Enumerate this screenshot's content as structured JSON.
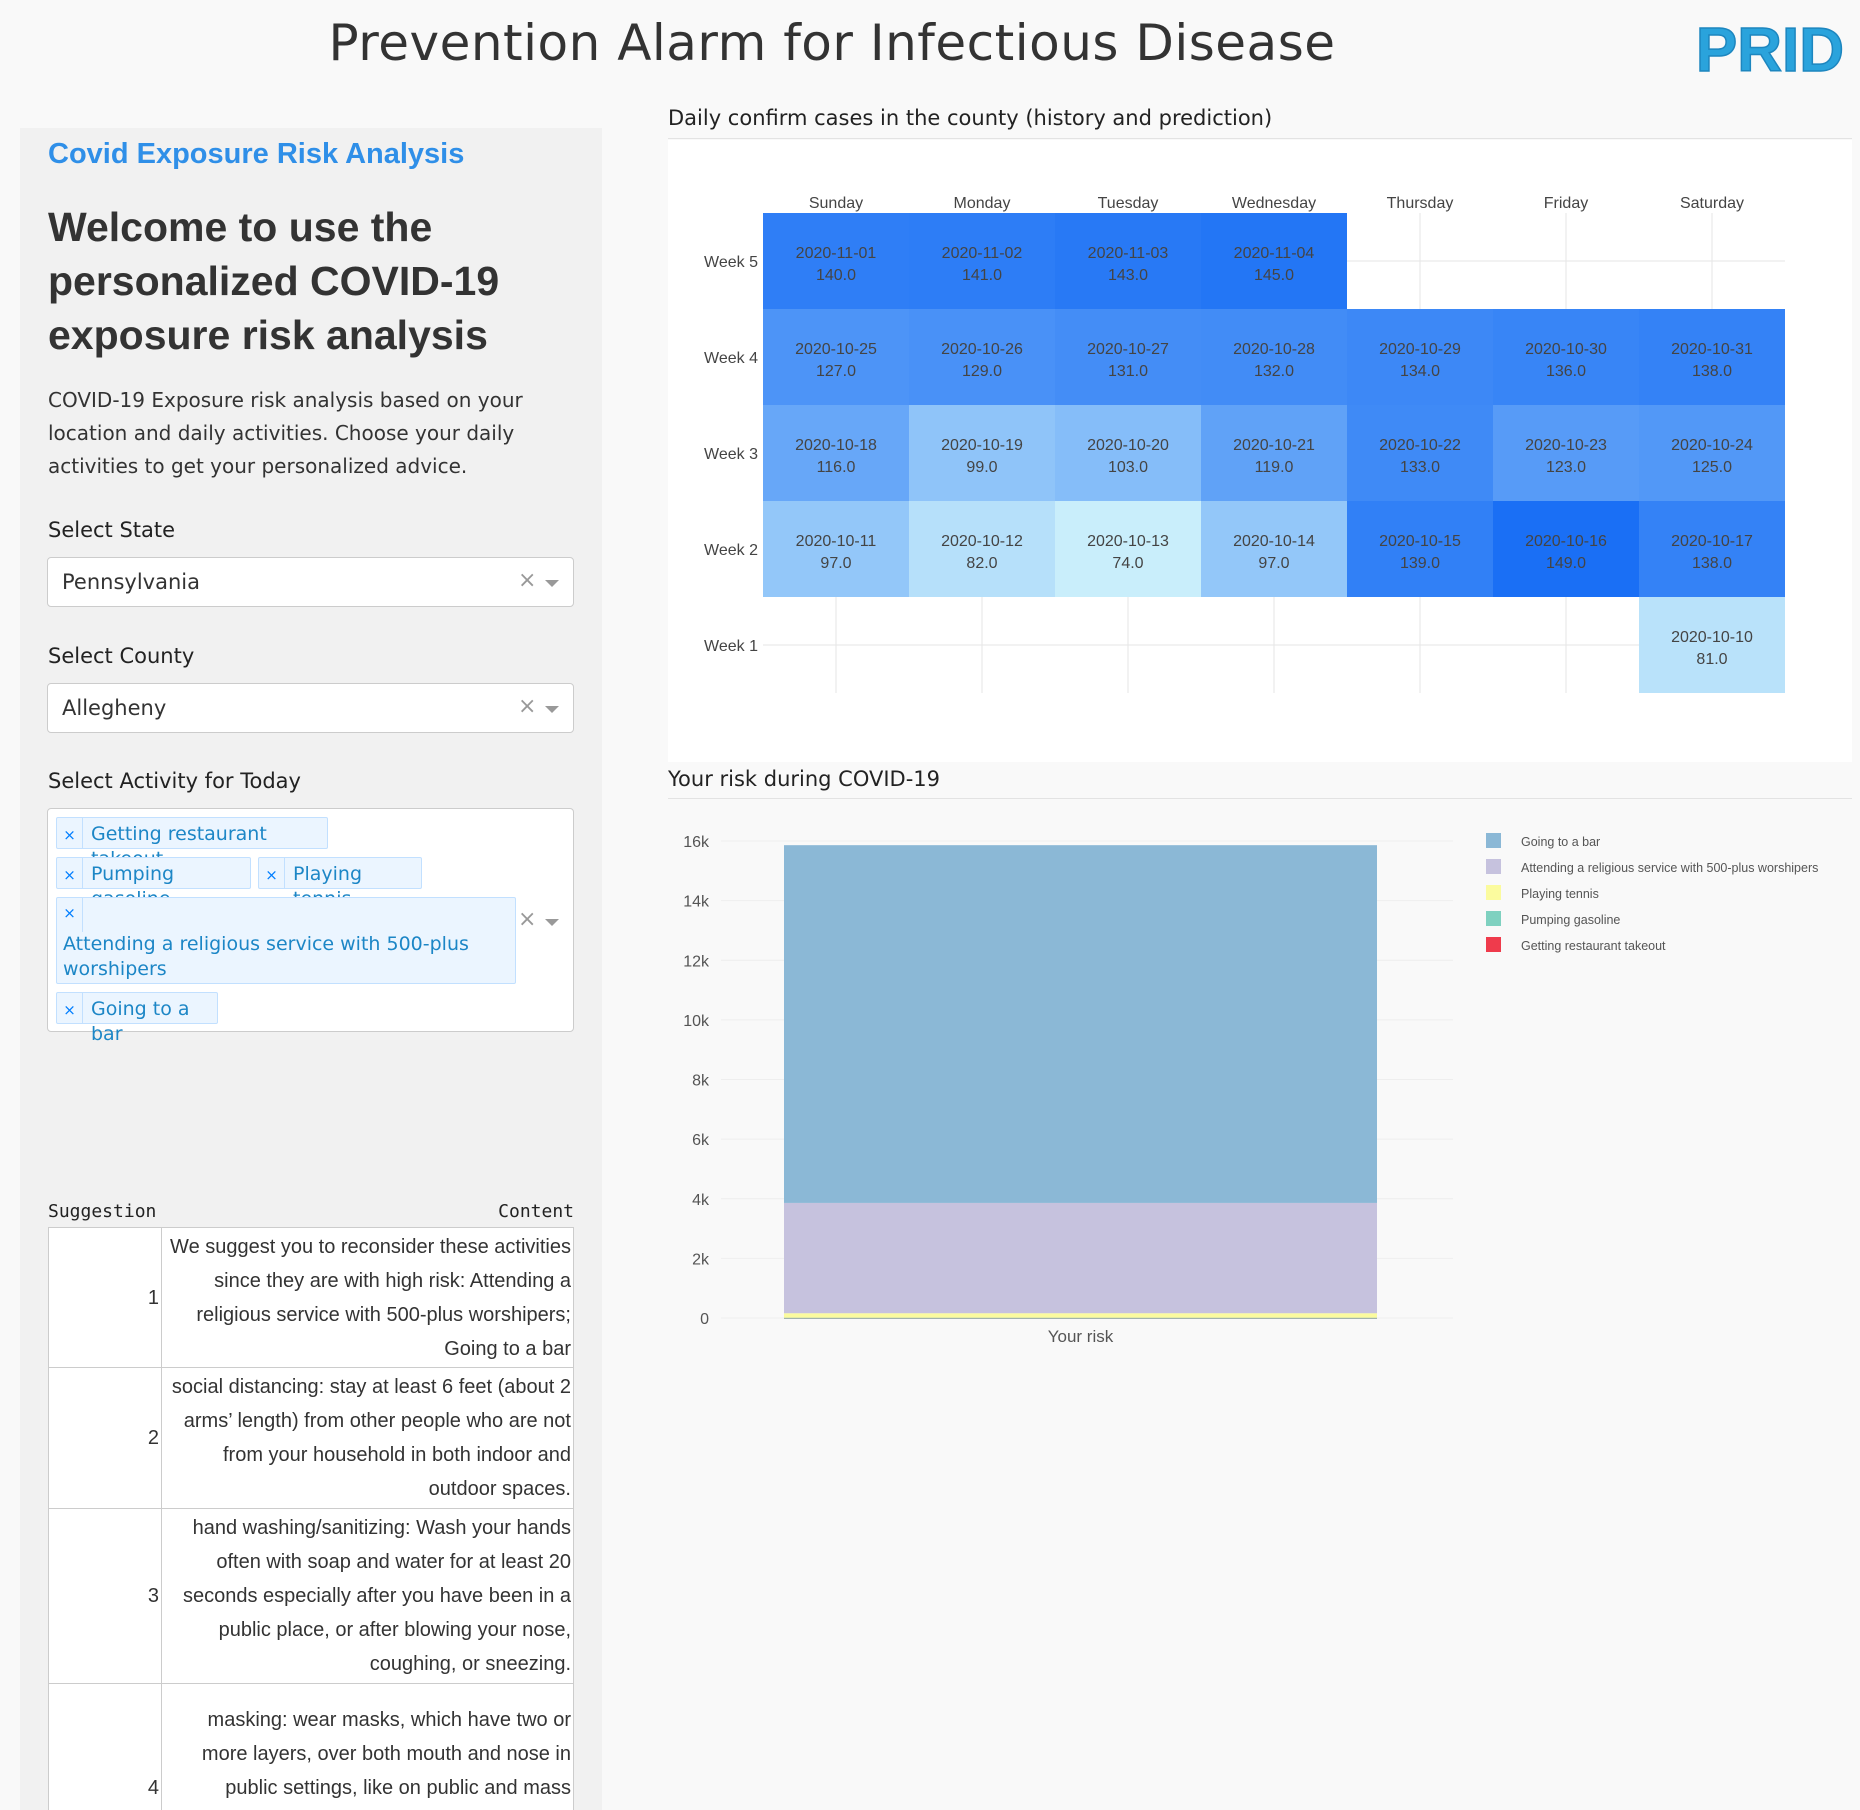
{
  "header": {
    "title": "Prevention Alarm for Infectious Disease",
    "logo_text": "PRID"
  },
  "sidebar": {
    "heading": "Covid Exposure Risk Analysis",
    "welcome": "Welcome to use the personalized COVID-19 exposure risk analysis",
    "intro": "COVID-19 Exposure risk analysis based on your location and daily activities. Choose your daily activities to get your personalized advice.",
    "state": {
      "label": "Select State",
      "value": "Pennsylvania"
    },
    "county": {
      "label": "Select County",
      "value": "Allegheny"
    },
    "activity": {
      "label": "Select Activity for Today",
      "selected": [
        "Getting restaurant takeout",
        "Pumping gasoline",
        "Playing tennis",
        "Attending a religious service with 500-plus worshipers",
        "Going to a bar"
      ]
    },
    "table": {
      "headers": [
        "Suggestion",
        "Content"
      ],
      "rows": [
        {
          "num": "1",
          "content": "We suggest you to reconsider these activities since they are with high risk: Attending a religious service with 500-plus worshipers; Going to a bar"
        },
        {
          "num": "2",
          "content": "social distancing: stay at least 6 feet (about 2 arms’ length) from other people who are not from your household in both indoor and outdoor spaces."
        },
        {
          "num": "3",
          "content": "hand washing/sanitizing: Wash your hands often with soap and water for at least 20 seconds especially after you have been in a public place, or after blowing your nose, coughing, or sneezing."
        },
        {
          "num": "4",
          "content": "masking: wear masks, which have two or more layers, over both mouth and nose in public settings, like on public and mass transportation, at events and gatherings, and anywhere they will be around other people."
        }
      ]
    }
  },
  "charts": {
    "calendar_title": "Daily confirm cases in the county (history and prediction)",
    "risk_title": "Your risk during COVID-19"
  },
  "chart_data": [
    {
      "type": "heatmap",
      "days": [
        "Sunday",
        "Monday",
        "Tuesday",
        "Wednesday",
        "Thursday",
        "Friday",
        "Saturday"
      ],
      "weeks": [
        "Week 5",
        "Week 4",
        "Week 3",
        "Week 2",
        "Week 1"
      ],
      "cells": [
        {
          "week": "Week 5",
          "day": "Sunday",
          "date": "2020-11-01",
          "value": "140.0"
        },
        {
          "week": "Week 5",
          "day": "Monday",
          "date": "2020-11-02",
          "value": "141.0"
        },
        {
          "week": "Week 5",
          "day": "Tuesday",
          "date": "2020-11-03",
          "value": "143.0"
        },
        {
          "week": "Week 5",
          "day": "Wednesday",
          "date": "2020-11-04",
          "value": "145.0"
        },
        {
          "week": "Week 4",
          "day": "Sunday",
          "date": "2020-10-25",
          "value": "127.0"
        },
        {
          "week": "Week 4",
          "day": "Monday",
          "date": "2020-10-26",
          "value": "129.0"
        },
        {
          "week": "Week 4",
          "day": "Tuesday",
          "date": "2020-10-27",
          "value": "131.0"
        },
        {
          "week": "Week 4",
          "day": "Wednesday",
          "date": "2020-10-28",
          "value": "132.0"
        },
        {
          "week": "Week 4",
          "day": "Thursday",
          "date": "2020-10-29",
          "value": "134.0"
        },
        {
          "week": "Week 4",
          "day": "Friday",
          "date": "2020-10-30",
          "value": "136.0"
        },
        {
          "week": "Week 4",
          "day": "Saturday",
          "date": "2020-10-31",
          "value": "138.0"
        },
        {
          "week": "Week 3",
          "day": "Sunday",
          "date": "2020-10-18",
          "value": "116.0"
        },
        {
          "week": "Week 3",
          "day": "Monday",
          "date": "2020-10-19",
          "value": "99.0"
        },
        {
          "week": "Week 3",
          "day": "Tuesday",
          "date": "2020-10-20",
          "value": "103.0"
        },
        {
          "week": "Week 3",
          "day": "Wednesday",
          "date": "2020-10-21",
          "value": "119.0"
        },
        {
          "week": "Week 3",
          "day": "Thursday",
          "date": "2020-10-22",
          "value": "133.0"
        },
        {
          "week": "Week 3",
          "day": "Friday",
          "date": "2020-10-23",
          "value": "123.0"
        },
        {
          "week": "Week 3",
          "day": "Saturday",
          "date": "2020-10-24",
          "value": "125.0"
        },
        {
          "week": "Week 2",
          "day": "Sunday",
          "date": "2020-10-11",
          "value": "97.0"
        },
        {
          "week": "Week 2",
          "day": "Monday",
          "date": "2020-10-12",
          "value": "82.0"
        },
        {
          "week": "Week 2",
          "day": "Tuesday",
          "date": "2020-10-13",
          "value": "74.0"
        },
        {
          "week": "Week 2",
          "day": "Wednesday",
          "date": "2020-10-14",
          "value": "97.0"
        },
        {
          "week": "Week 2",
          "day": "Thursday",
          "date": "2020-10-15",
          "value": "139.0"
        },
        {
          "week": "Week 2",
          "day": "Friday",
          "date": "2020-10-16",
          "value": "149.0"
        },
        {
          "week": "Week 2",
          "day": "Saturday",
          "date": "2020-10-17",
          "value": "138.0"
        },
        {
          "week": "Week 1",
          "day": "Saturday",
          "date": "2020-10-10",
          "value": "81.0"
        }
      ],
      "colorscale": [
        "#c9eefb",
        "#1a6ff5"
      ]
    },
    {
      "type": "bar",
      "stacked": true,
      "categories": [
        "Your risk"
      ],
      "yticks": [
        "0",
        "2k",
        "4k",
        "6k",
        "8k",
        "10k",
        "12k",
        "14k",
        "16k"
      ],
      "ylim": [
        0,
        16000
      ],
      "series": [
        {
          "name": "Getting restaurant takeout",
          "color": "#ef3b4c",
          "values": [
            5
          ]
        },
        {
          "name": "Pumping gasoline",
          "color": "#7fd1c0",
          "values": [
            5
          ]
        },
        {
          "name": "Playing tennis",
          "color": "#fbfb9e",
          "values": [
            150
          ]
        },
        {
          "name": "Attending a religious service with 500-plus worshipers",
          "color": "#c6c2de",
          "values": [
            3700
          ]
        },
        {
          "name": "Going to a bar",
          "color": "#8bb8d6",
          "values": [
            12000
          ]
        }
      ],
      "legend_order": [
        "Going to a bar",
        "Attending a religious service with 500-plus worshipers",
        "Playing tennis",
        "Pumping gasoline",
        "Getting restaurant takeout"
      ],
      "legend_placement": "right"
    }
  ]
}
